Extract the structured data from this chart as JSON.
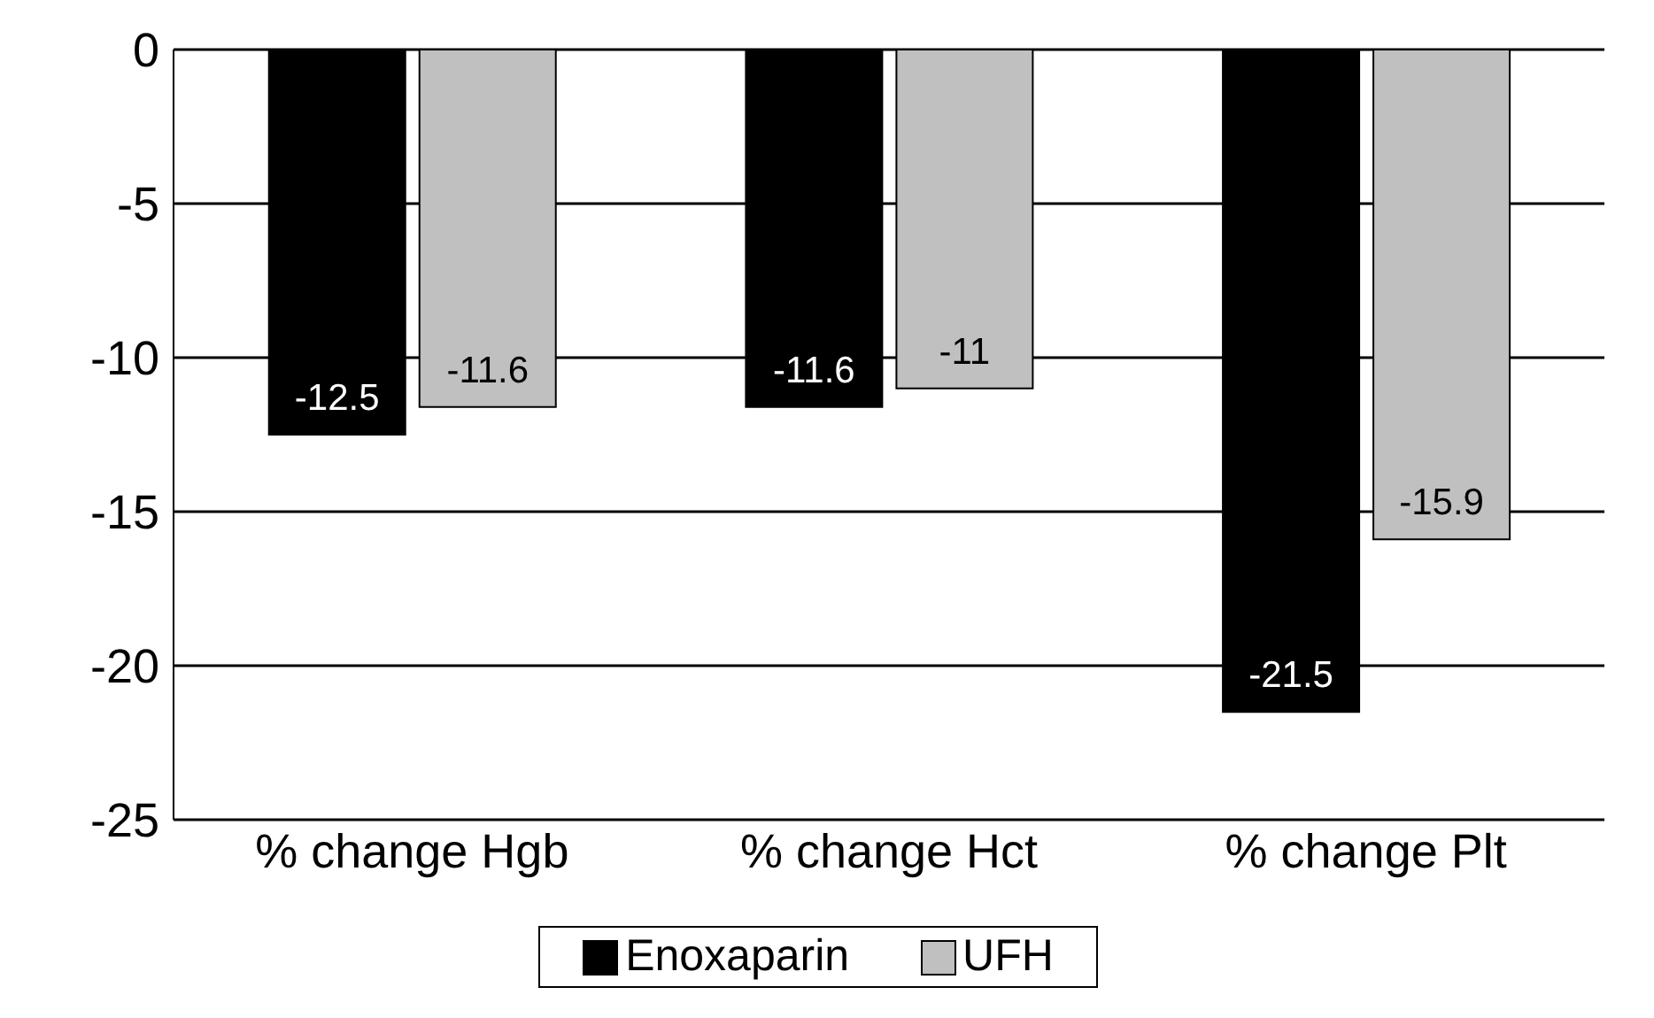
{
  "chart_data": {
    "type": "bar",
    "categories": [
      "% change Hgb",
      "% change Hct",
      "% change Plt"
    ],
    "series": [
      {
        "name": "Enoxaparin",
        "color": "#000000",
        "values": [
          -12.5,
          -11.6,
          -21.5
        ]
      },
      {
        "name": "UFH",
        "color": "#c0c0c0",
        "values": [
          -11.6,
          -11,
          -15.9
        ]
      }
    ],
    "ylim": [
      -25,
      0
    ],
    "yticks": [
      -25,
      -20,
      -15,
      -10,
      -5,
      0
    ],
    "grid": "y",
    "legend": "bottom",
    "data_labels": true
  }
}
